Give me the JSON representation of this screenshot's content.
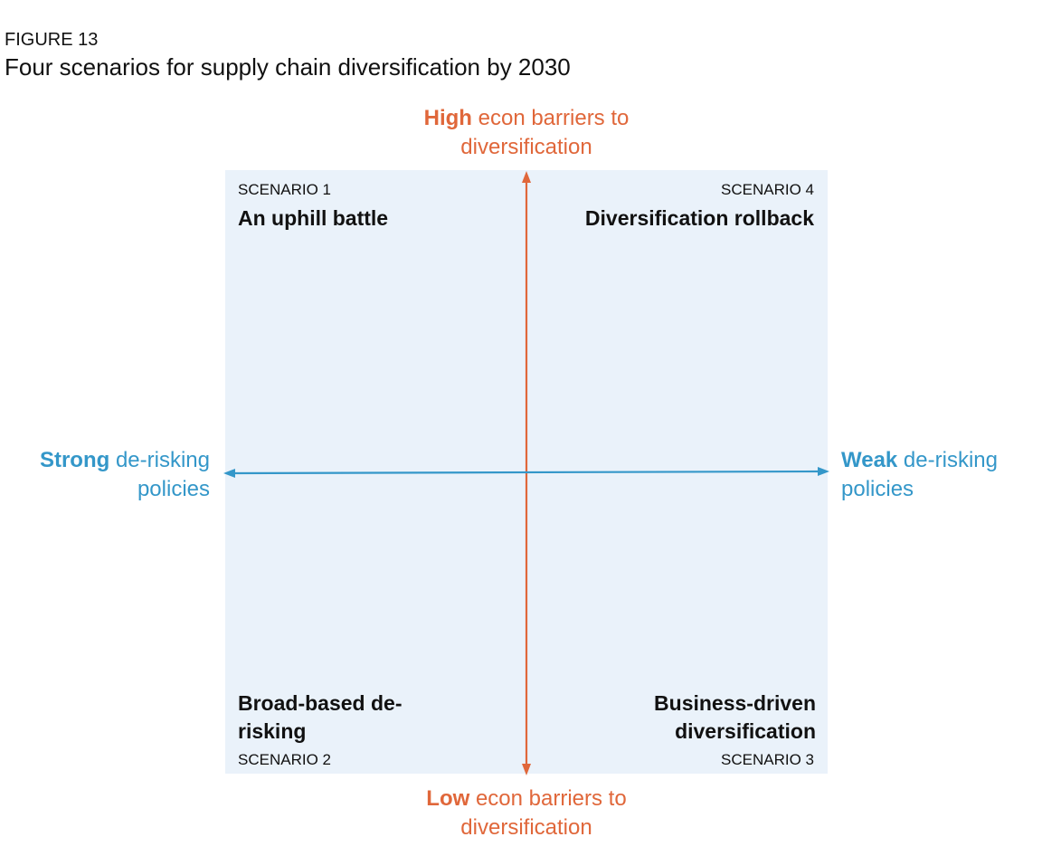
{
  "figure": {
    "label": "FIGURE 13",
    "title": "Four scenarios for supply chain diversification by 2030"
  },
  "axes": {
    "top": {
      "bold": "High",
      "rest": " econ barriers to diversification"
    },
    "bottom": {
      "bold": "Low",
      "rest": " econ barriers to diversification"
    },
    "left": {
      "bold": "Strong",
      "rest": " de-risking policies"
    },
    "right": {
      "bold": "Weak",
      "rest": " de-risking policies"
    }
  },
  "scenarios": [
    {
      "number": "SCENARIO 1",
      "name": "An uphill battle"
    },
    {
      "number": "SCENARIO 4",
      "name": "Diversification rollback"
    },
    {
      "number": "SCENARIO 2",
      "name": "Broad-based de-risking"
    },
    {
      "number": "SCENARIO 3",
      "name": "Business-driven diversification"
    }
  ],
  "colors": {
    "vertical_axis": "#e0673a",
    "horizontal_axis": "#3497c9",
    "quadrant_background": "#eaf2fa"
  }
}
